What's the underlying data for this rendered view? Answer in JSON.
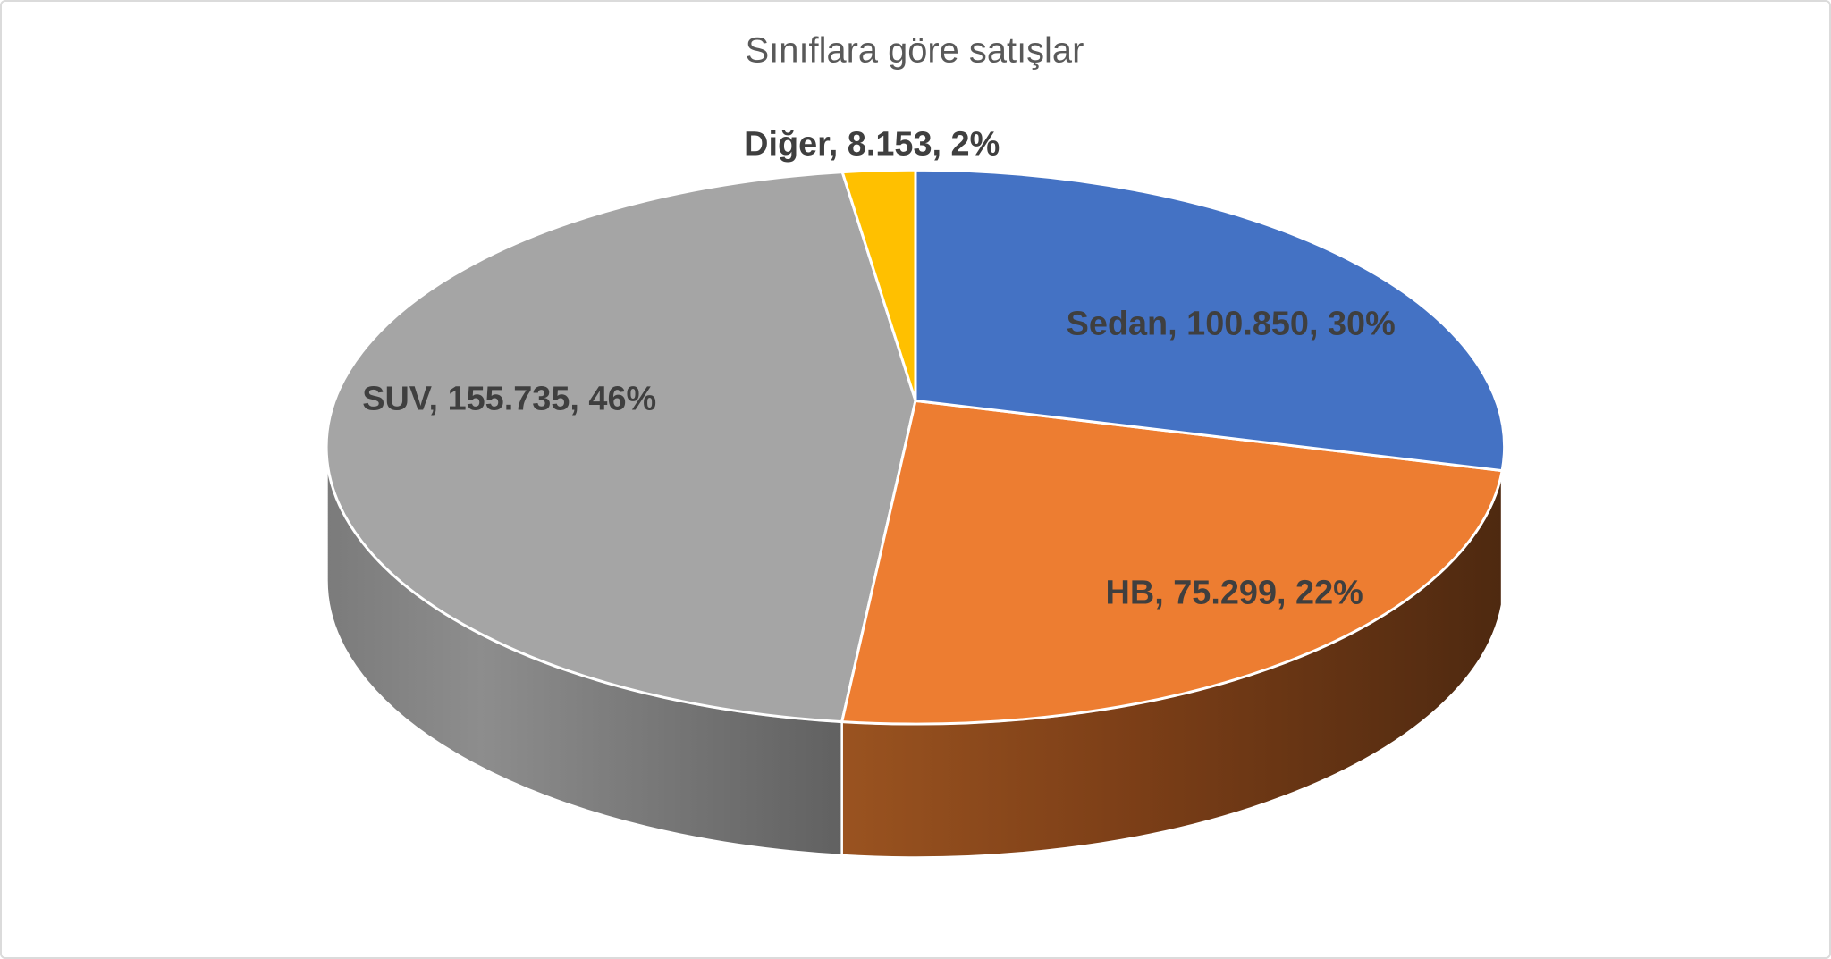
{
  "window": {
    "background_color": "#FFFFFF",
    "frame_border_color": "#DBDBDB"
  },
  "chart_data": {
    "type": "pie",
    "style": "3d",
    "title": "Sınıflara göre satışlar",
    "title_color": "#595959",
    "categories": [
      "Sedan",
      "HB",
      "SUV",
      "Diğer"
    ],
    "values": [
      100850,
      75299,
      155735,
      8153
    ],
    "percentages": [
      30,
      22,
      46,
      2
    ],
    "display_labels": [
      "Sedan, 100.850, 30%",
      "HB, 75.299, 22%",
      "SUV, 155.735, 46%",
      "Diğer, 8.153, 2%"
    ],
    "colors": [
      "#4472C4",
      "#ED7D31",
      "#A5A5A5",
      "#FFC000"
    ],
    "label_color": "#3F3F3F",
    "legend": "none",
    "start_angle": 0,
    "direction": "clockwise",
    "separator_color": "#FFFFFF"
  }
}
